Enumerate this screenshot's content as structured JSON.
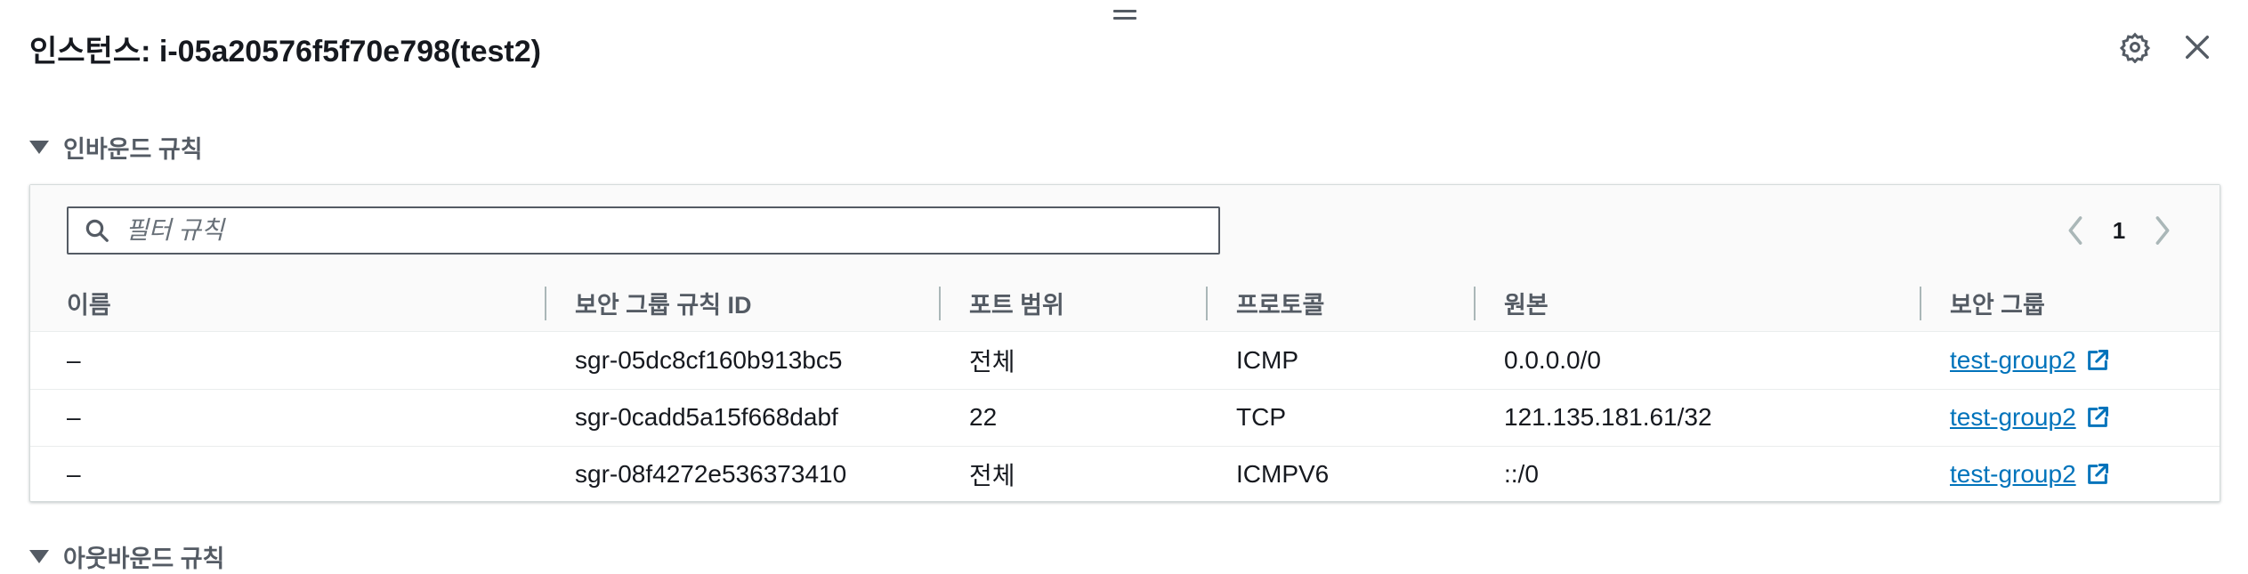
{
  "window": {
    "title": "인스턴스: i-05a20576f5f70e798(test2)"
  },
  "header_icons": {
    "settings": "gear-icon",
    "close": "close-icon"
  },
  "inbound": {
    "section_label": "인바운드 규칙",
    "filter_placeholder": "필터 규칙",
    "pagination": {
      "current_page": "1"
    },
    "columns": [
      "이름",
      "보안 그룹 규칙 ID",
      "포트 범위",
      "프로토콜",
      "원본",
      "보안 그룹"
    ],
    "rows": [
      {
        "name": "–",
        "rule_id": "sgr-05dc8cf160b913bc5",
        "port": "전체",
        "protocol": "ICMP",
        "source": "0.0.0.0/0",
        "group": "test-group2"
      },
      {
        "name": "–",
        "rule_id": "sgr-0cadd5a15f668dabf",
        "port": "22",
        "protocol": "TCP",
        "source": "121.135.181.61/32",
        "group": "test-group2"
      },
      {
        "name": "–",
        "rule_id": "sgr-08f4272e536373410",
        "port": "전체",
        "protocol": "ICMPV6",
        "source": "::/0",
        "group": "test-group2"
      }
    ]
  },
  "outbound": {
    "section_label": "아웃바운드 규칙"
  },
  "colors": {
    "link": "#0073bb",
    "text": "#16191f",
    "muted": "#545b64"
  }
}
